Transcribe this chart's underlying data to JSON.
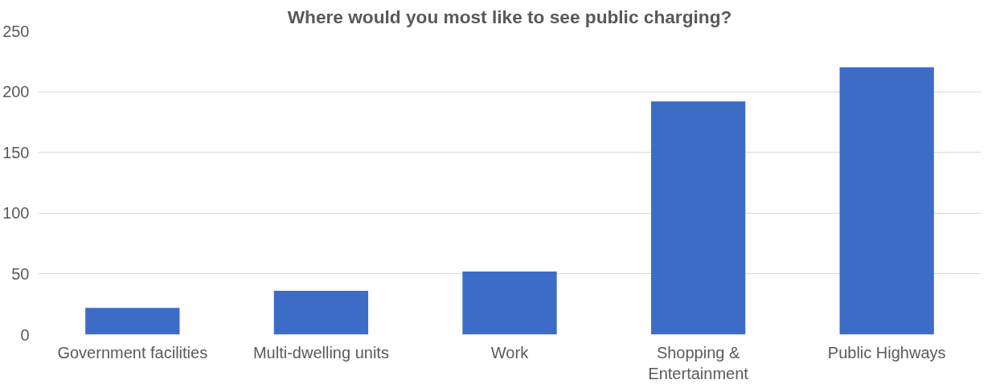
{
  "chart_data": {
    "type": "bar",
    "title": "Where would you most like to see public charging?",
    "categories": [
      "Government facilities",
      "Multi-dwelling units",
      "Work",
      "Shopping & Entertainment",
      "Public Highways"
    ],
    "values": [
      22,
      36,
      52,
      192,
      220
    ],
    "color": "#3d6cc7",
    "ylim": [
      0,
      250
    ],
    "yticks": [
      0,
      50,
      100,
      150,
      200,
      250
    ],
    "grid": "y"
  }
}
